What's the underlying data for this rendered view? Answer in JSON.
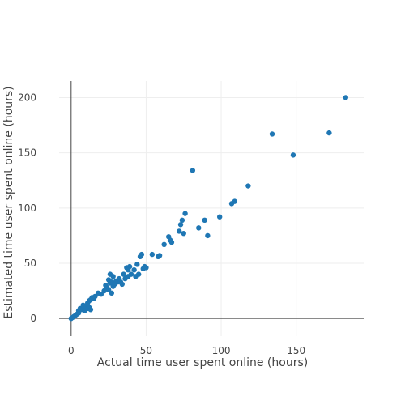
{
  "chart_data": {
    "type": "scatter",
    "xlabel": "Actual time user spent online (hours)",
    "ylabel": "Estimated time user spent online (hours)",
    "xlim": [
      -8,
      195
    ],
    "ylim": [
      -16,
      215
    ],
    "x_ticks": [
      0,
      50,
      100,
      150
    ],
    "y_ticks": [
      0,
      50,
      100,
      150,
      200
    ],
    "grid": true,
    "point_color": "#1f77b4",
    "points": [
      [
        0,
        0
      ],
      [
        1,
        1
      ],
      [
        2,
        2
      ],
      [
        3,
        3
      ],
      [
        4,
        4
      ],
      [
        5,
        5
      ],
      [
        5,
        7
      ],
      [
        6,
        9
      ],
      [
        7,
        8
      ],
      [
        8,
        10
      ],
      [
        8,
        12
      ],
      [
        9,
        7
      ],
      [
        10,
        11
      ],
      [
        11,
        14
      ],
      [
        11,
        9
      ],
      [
        12,
        16
      ],
      [
        12,
        10
      ],
      [
        13,
        8
      ],
      [
        13,
        17
      ],
      [
        14,
        19
      ],
      [
        15,
        18
      ],
      [
        16,
        20
      ],
      [
        18,
        23
      ],
      [
        20,
        22
      ],
      [
        22,
        25
      ],
      [
        23,
        30
      ],
      [
        24,
        28
      ],
      [
        25,
        35
      ],
      [
        25,
        26
      ],
      [
        26,
        40
      ],
      [
        26,
        32
      ],
      [
        27,
        23
      ],
      [
        27,
        33
      ],
      [
        28,
        29
      ],
      [
        28,
        38
      ],
      [
        29,
        31
      ],
      [
        30,
        34
      ],
      [
        31,
        33
      ],
      [
        32,
        36
      ],
      [
        33,
        33
      ],
      [
        34,
        31
      ],
      [
        35,
        40
      ],
      [
        36,
        36
      ],
      [
        37,
        46
      ],
      [
        38,
        44
      ],
      [
        38,
        38
      ],
      [
        39,
        47
      ],
      [
        40,
        40
      ],
      [
        42,
        44
      ],
      [
        43,
        38
      ],
      [
        44,
        49
      ],
      [
        45,
        40
      ],
      [
        46,
        56
      ],
      [
        47,
        58
      ],
      [
        48,
        45
      ],
      [
        49,
        47
      ],
      [
        50,
        46
      ],
      [
        54,
        58
      ],
      [
        58,
        56
      ],
      [
        59,
        57
      ],
      [
        62,
        67
      ],
      [
        65,
        74
      ],
      [
        66,
        71
      ],
      [
        67,
        69
      ],
      [
        72,
        79
      ],
      [
        73,
        85
      ],
      [
        74,
        89
      ],
      [
        75,
        77
      ],
      [
        76,
        95
      ],
      [
        81,
        134
      ],
      [
        85,
        82
      ],
      [
        89,
        89
      ],
      [
        91,
        75
      ],
      [
        99,
        92
      ],
      [
        107,
        104
      ],
      [
        109,
        106
      ],
      [
        118,
        120
      ],
      [
        134,
        167
      ],
      [
        148,
        148
      ],
      [
        172,
        168
      ],
      [
        183,
        200
      ]
    ]
  }
}
